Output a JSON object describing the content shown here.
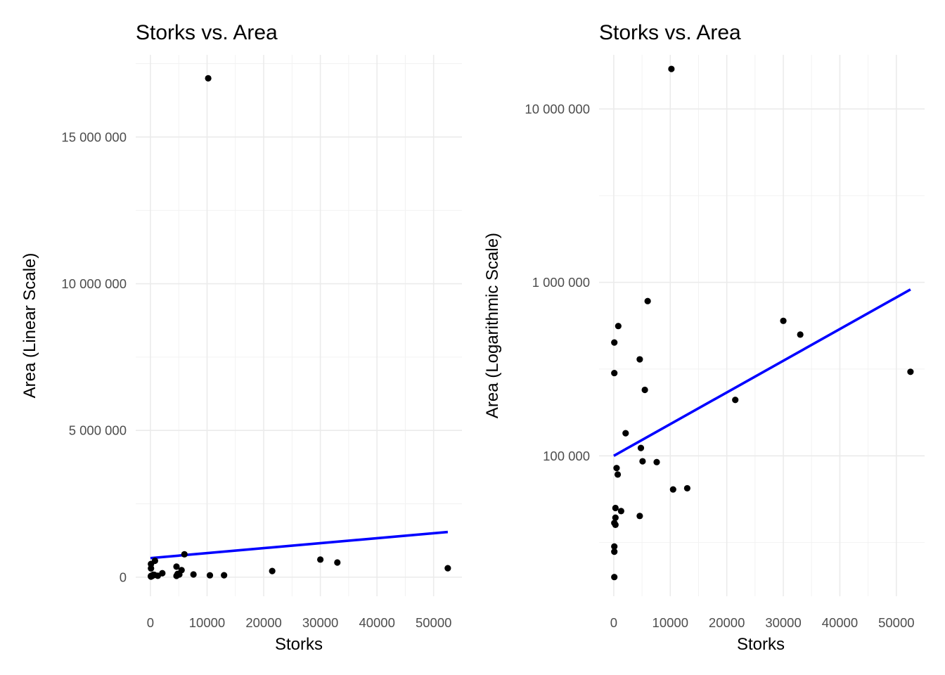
{
  "chart_data": [
    {
      "type": "scatter",
      "title": "Storks vs. Area",
      "xlabel": "Storks",
      "ylabel": "Area (Linear Scale)",
      "yscale": "linear",
      "xlim": [
        -2600,
        55000
      ],
      "ylim": [
        -650000,
        17800000
      ],
      "xticks": [
        0,
        10000,
        20000,
        30000,
        40000,
        50000
      ],
      "xtick_labels": [
        "0",
        "10000",
        "20000",
        "30000",
        "40000",
        "50000"
      ],
      "yticks": [
        0,
        5000000,
        10000000,
        15000000
      ],
      "ytick_labels": [
        "0",
        "5 000 000",
        "10 000 000",
        "15 000 000"
      ],
      "grid": true,
      "legend": "none",
      "point_color": "#000000",
      "fit_color": "#0000ff",
      "points": [
        [
          100,
          20000
        ],
        [
          100,
          28000
        ],
        [
          100,
          30000
        ],
        [
          300,
          40000
        ],
        [
          300,
          44000
        ],
        [
          100,
          41000
        ],
        [
          300,
          50000
        ],
        [
          500,
          85000
        ],
        [
          700,
          78000
        ],
        [
          1300,
          48000
        ],
        [
          2100,
          135000
        ],
        [
          4600,
          45000
        ],
        [
          4800,
          111000
        ],
        [
          5100,
          93000
        ],
        [
          7600,
          92000
        ],
        [
          10500,
          64000
        ],
        [
          13000,
          65000
        ],
        [
          4600,
          360000
        ],
        [
          100,
          450000
        ],
        [
          100,
          300000
        ],
        [
          800,
          560000
        ],
        [
          5500,
          240000
        ],
        [
          6000,
          780000
        ],
        [
          21500,
          210000
        ],
        [
          30000,
          600000
        ],
        [
          33000,
          500000
        ],
        [
          52500,
          305000
        ],
        [
          10200,
          17000000
        ]
      ],
      "fit": {
        "x": [
          0,
          52500
        ],
        "y": [
          650000,
          1540000
        ]
      }
    },
    {
      "type": "scatter",
      "title": "Storks vs. Area",
      "xlabel": "Storks",
      "ylabel": "Area (Logarithmic Scale)",
      "yscale": "log10",
      "xlim": [
        -2600,
        55000
      ],
      "ylim": [
        15500,
        20500000
      ],
      "xticks": [
        0,
        10000,
        20000,
        30000,
        40000,
        50000
      ],
      "xtick_labels": [
        "0",
        "10000",
        "20000",
        "30000",
        "40000",
        "50000"
      ],
      "yticks": [
        100000,
        1000000,
        10000000
      ],
      "ytick_labels": [
        "100 000",
        "1 000 000",
        "10 000 000"
      ],
      "y_minor_ticks": [
        31623,
        316228,
        3162278
      ],
      "grid": true,
      "legend": "none",
      "point_color": "#000000",
      "fit_color": "#0000ff",
      "points": [
        [
          100,
          20000
        ],
        [
          100,
          28000
        ],
        [
          100,
          30000
        ],
        [
          300,
          40000
        ],
        [
          300,
          44000
        ],
        [
          100,
          41000
        ],
        [
          300,
          50000
        ],
        [
          500,
          85000
        ],
        [
          700,
          78000
        ],
        [
          1300,
          48000
        ],
        [
          2100,
          135000
        ],
        [
          4600,
          45000
        ],
        [
          4800,
          111000
        ],
        [
          5100,
          93000
        ],
        [
          7600,
          92000
        ],
        [
          10500,
          64000
        ],
        [
          13000,
          65000
        ],
        [
          4600,
          360000
        ],
        [
          100,
          450000
        ],
        [
          100,
          300000
        ],
        [
          800,
          560000
        ],
        [
          5500,
          240000
        ],
        [
          6000,
          780000
        ],
        [
          21500,
          210000
        ],
        [
          30000,
          600000
        ],
        [
          33000,
          500000
        ],
        [
          52500,
          305000
        ],
        [
          10200,
          17000000
        ]
      ],
      "fit": {
        "x": [
          0,
          52500
        ],
        "y": [
          100000,
          910000
        ]
      }
    }
  ]
}
